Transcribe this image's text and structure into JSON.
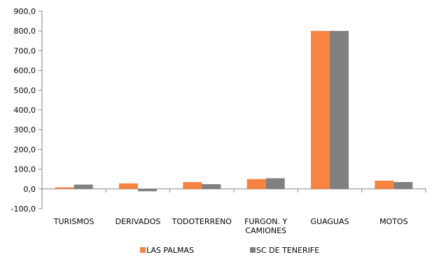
{
  "chart_data": {
    "type": "bar",
    "categories": [
      [
        "TURISMOS"
      ],
      [
        "DERIVADOS"
      ],
      [
        "TODOTERRENO"
      ],
      [
        "FURGON. Y",
        "CAMIONES"
      ],
      [
        "GUAGUAS"
      ],
      [
        "MOTOS"
      ]
    ],
    "series": [
      {
        "name": "LAS PALMAS",
        "color": "#f7843f",
        "values": [
          8,
          28,
          35,
          50,
          800,
          42
        ]
      },
      {
        "name": "SC DE TENERIFE",
        "color": "#808080",
        "values": [
          22,
          -12,
          24,
          54,
          800,
          35
        ]
      }
    ],
    "ylim": [
      -100,
      900
    ],
    "yticks": [
      -100,
      0,
      100,
      200,
      300,
      400,
      500,
      600,
      700,
      800,
      900
    ],
    "ytick_labels": [
      "-100,0",
      "0,0",
      "100,0",
      "200,0",
      "300,0",
      "400,0",
      "500,0",
      "600,0",
      "700,0",
      "800,0",
      "900,0"
    ],
    "title": "",
    "xlabel": "",
    "ylabel": "",
    "grid": false,
    "legend_position": "bottom"
  }
}
